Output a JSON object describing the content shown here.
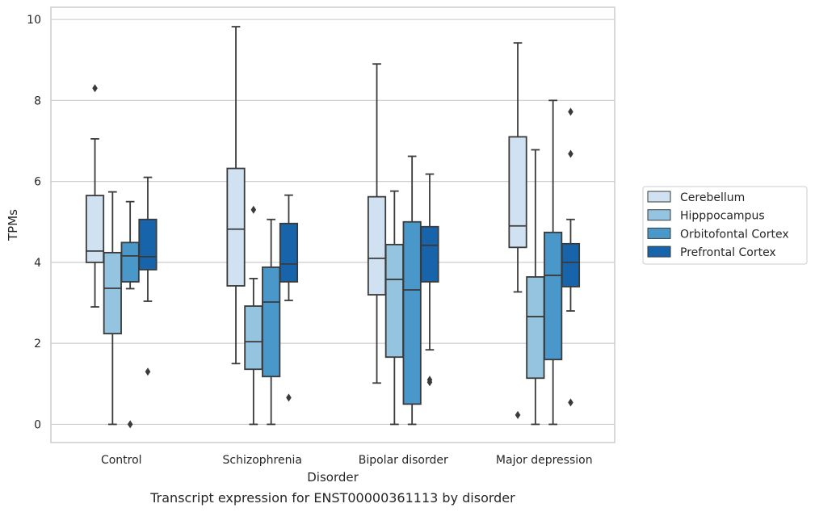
{
  "chart_data": {
    "type": "boxplot",
    "title": "",
    "caption": "Transcript expression for ENST00000361113 by disorder",
    "xlabel": "Disorder",
    "ylabel": "TPMs",
    "ylim": [
      -0.45,
      10.3
    ],
    "yticks": [
      "0",
      "2",
      "4",
      "6",
      "8",
      "10"
    ],
    "grid": true,
    "legend_position": "right",
    "categories": [
      "Control",
      "Schizophrenia",
      "Bipolar disorder",
      "Major depression"
    ],
    "series": [
      {
        "name": "Cerebellum",
        "color": "#d0e1f2",
        "boxes": [
          {
            "whislo": 2.9,
            "q1": 4.0,
            "med": 4.28,
            "q3": 5.65,
            "whishi": 7.05,
            "fliers": [
              8.3
            ]
          },
          {
            "whislo": 1.5,
            "q1": 3.42,
            "med": 4.82,
            "q3": 6.32,
            "whishi": 9.82,
            "fliers": []
          },
          {
            "whislo": 1.02,
            "q1": 3.2,
            "med": 4.1,
            "q3": 5.62,
            "whishi": 8.9,
            "fliers": []
          },
          {
            "whislo": 3.27,
            "q1": 4.37,
            "med": 4.9,
            "q3": 7.1,
            "whishi": 9.42,
            "fliers": [
              0.23
            ]
          }
        ]
      },
      {
        "name": "Hipppocampus",
        "color": "#94c4df",
        "boxes": [
          {
            "whislo": 0.0,
            "q1": 2.24,
            "med": 3.36,
            "q3": 4.24,
            "whishi": 5.74,
            "fliers": []
          },
          {
            "whislo": 0.0,
            "q1": 1.36,
            "med": 2.04,
            "q3": 2.92,
            "whishi": 3.6,
            "fliers": [
              5.3
            ]
          },
          {
            "whislo": 0.0,
            "q1": 1.66,
            "med": 3.58,
            "q3": 4.44,
            "whishi": 5.76,
            "fliers": []
          },
          {
            "whislo": 0.0,
            "q1": 1.14,
            "med": 2.66,
            "q3": 3.64,
            "whishi": 6.78,
            "fliers": []
          }
        ]
      },
      {
        "name": "Orbitofontal Cortex",
        "color": "#4a98c9",
        "boxes": [
          {
            "whislo": 3.35,
            "q1": 3.52,
            "med": 4.16,
            "q3": 4.49,
            "whishi": 5.5,
            "fliers": [
              0.0
            ]
          },
          {
            "whislo": 0.0,
            "q1": 1.18,
            "med": 3.02,
            "q3": 3.88,
            "whishi": 5.06,
            "fliers": []
          },
          {
            "whislo": 0.0,
            "q1": 0.5,
            "med": 3.32,
            "q3": 5.0,
            "whishi": 6.62,
            "fliers": []
          },
          {
            "whislo": 0.0,
            "q1": 1.6,
            "med": 3.68,
            "q3": 4.74,
            "whishi": 8.0,
            "fliers": []
          }
        ]
      },
      {
        "name": "Prefrontal Cortex",
        "color": "#1764ab",
        "boxes": [
          {
            "whislo": 3.04,
            "q1": 3.82,
            "med": 4.14,
            "q3": 5.06,
            "whishi": 6.1,
            "fliers": [
              1.3
            ]
          },
          {
            "whislo": 3.06,
            "q1": 3.52,
            "med": 3.96,
            "q3": 4.96,
            "whishi": 5.66,
            "fliers": [
              0.66
            ]
          },
          {
            "whislo": 1.84,
            "q1": 3.52,
            "med": 4.42,
            "q3": 4.88,
            "whishi": 6.18,
            "fliers": [
              1.04,
              1.1
            ]
          },
          {
            "whislo": 2.8,
            "q1": 3.4,
            "med": 4.0,
            "q3": 4.46,
            "whishi": 5.06,
            "fliers": [
              0.54,
              6.68,
              7.72
            ]
          }
        ]
      }
    ]
  }
}
